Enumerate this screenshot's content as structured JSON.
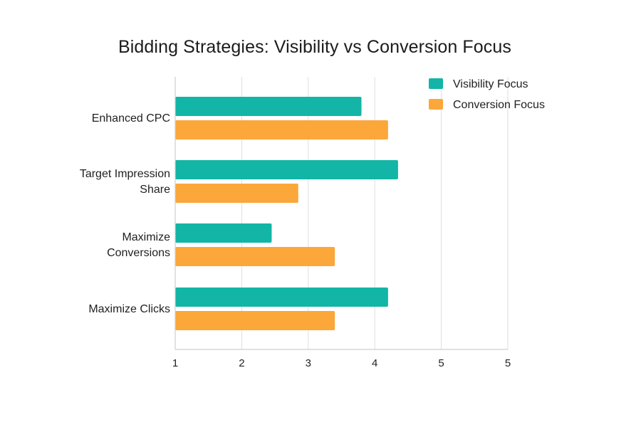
{
  "chart_data": {
    "type": "bar",
    "orientation": "horizontal",
    "title": "Bidding Strategies: Visibility vs Conversion Focus",
    "categories": [
      [
        "Enhanced CPC"
      ],
      [
        "Target Impression",
        "Share"
      ],
      [
        "Maximize",
        "Conversions"
      ],
      [
        "Maximize Clicks"
      ]
    ],
    "series": [
      {
        "name": "Visibility Focus",
        "color": "#12b5a6",
        "values": [
          3.8,
          4.35,
          2.45,
          4.2
        ]
      },
      {
        "name": "Conversion Focus",
        "color": "#fba73a",
        "values": [
          4.2,
          2.85,
          3.4,
          3.4
        ]
      }
    ],
    "x_ticks": [
      "1",
      "2",
      "3",
      "4",
      "5",
      "5"
    ],
    "xlim": [
      1,
      6
    ],
    "grid": true,
    "legend_position": "top-right"
  }
}
